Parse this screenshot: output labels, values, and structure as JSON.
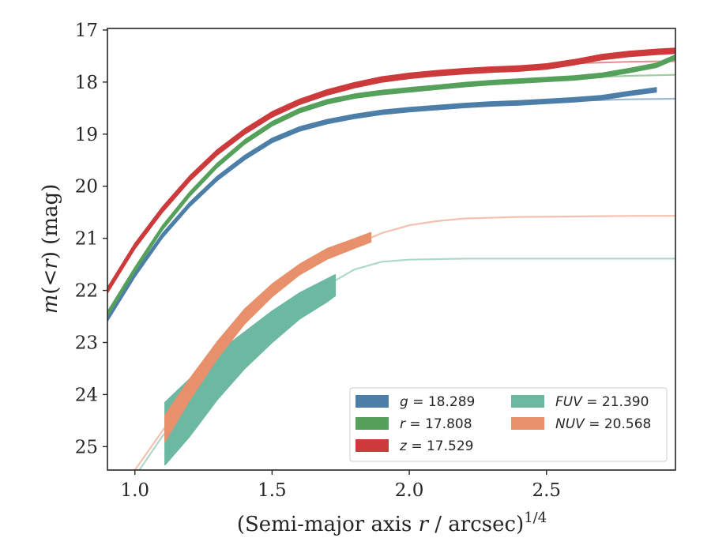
{
  "chart_data": {
    "type": "line",
    "title": "",
    "xlabel": "(Semi-major axis r / arcsec)^1/4",
    "xlabel_parts": {
      "before": "(Semi-major axis ",
      "var": "r",
      "middle": " / arcsec)",
      "sup": "1/4"
    },
    "ylabel": "m(<r) (mag)",
    "ylabel_parts": {
      "var": "m",
      "open": "(",
      "lt": "<",
      "r": "r",
      "close": ")",
      "unit": " (mag)"
    },
    "xlim": [
      0.9,
      2.97
    ],
    "ylim": [
      25.45,
      16.97
    ],
    "y_inverted": true,
    "grid": false,
    "legend_position": "lower-right",
    "xticks": [
      1.0,
      1.5,
      2.0,
      2.5
    ],
    "xtick_labels": [
      "1.0",
      "1.5",
      "2.0",
      "2.5"
    ],
    "yticks": [
      17,
      18,
      19,
      20,
      21,
      22,
      23,
      24,
      25
    ],
    "ytick_labels": [
      "17",
      "18",
      "19",
      "20",
      "21",
      "22",
      "23",
      "24",
      "25"
    ],
    "series": [
      {
        "name": "g = 18.289",
        "legend_var": "g",
        "legend_value": "18.289",
        "color": "#4c7ea8",
        "band_halfwidth": 0.04,
        "x": [
          0.9,
          1.0,
          1.1,
          1.2,
          1.3,
          1.4,
          1.5,
          1.6,
          1.7,
          1.8,
          1.9,
          2.0,
          2.1,
          2.2,
          2.3,
          2.4,
          2.5,
          2.6,
          2.7,
          2.8,
          2.9
        ],
        "y": [
          22.55,
          21.7,
          20.95,
          20.35,
          19.85,
          19.45,
          19.12,
          18.9,
          18.76,
          18.66,
          18.58,
          18.53,
          18.49,
          18.45,
          18.42,
          18.4,
          18.37,
          18.34,
          18.3,
          18.22,
          18.15
        ],
        "fit_x": [
          0.9,
          1.0,
          1.1,
          1.2,
          1.3,
          1.4,
          1.5,
          1.6,
          1.7,
          1.8,
          1.9,
          2.0,
          2.2,
          2.4,
          2.6,
          2.8,
          2.97
        ],
        "fit_y": [
          22.55,
          21.7,
          20.95,
          20.35,
          19.85,
          19.45,
          19.12,
          18.9,
          18.76,
          18.66,
          18.58,
          18.53,
          18.45,
          18.4,
          18.36,
          18.33,
          18.32
        ]
      },
      {
        "name": "r = 17.808",
        "legend_var": "r",
        "legend_value": "17.808",
        "color": "#55a05a",
        "band_halfwidth": 0.04,
        "x": [
          0.9,
          1.0,
          1.1,
          1.2,
          1.3,
          1.4,
          1.5,
          1.6,
          1.7,
          1.8,
          1.9,
          2.0,
          2.1,
          2.2,
          2.3,
          2.4,
          2.5,
          2.6,
          2.7,
          2.8,
          2.9,
          2.97
        ],
        "y": [
          22.45,
          21.6,
          20.8,
          20.15,
          19.6,
          19.15,
          18.8,
          18.55,
          18.38,
          18.27,
          18.2,
          18.15,
          18.1,
          18.05,
          18.01,
          17.98,
          17.95,
          17.92,
          17.87,
          17.78,
          17.68,
          17.52
        ],
        "fit_x": [
          0.9,
          1.0,
          1.1,
          1.2,
          1.3,
          1.4,
          1.5,
          1.6,
          1.7,
          1.8,
          1.9,
          2.0,
          2.2,
          2.4,
          2.6,
          2.8,
          2.97
        ],
        "fit_y": [
          22.45,
          21.6,
          20.8,
          20.15,
          19.6,
          19.15,
          18.8,
          18.55,
          18.38,
          18.27,
          18.2,
          18.13,
          18.04,
          17.97,
          17.92,
          17.88,
          17.86
        ]
      },
      {
        "name": "z = 17.529",
        "legend_var": "z",
        "legend_value": "17.529",
        "color": "#cc3a3c",
        "band_halfwidth": 0.05,
        "x": [
          0.9,
          1.0,
          1.1,
          1.2,
          1.3,
          1.4,
          1.5,
          1.6,
          1.7,
          1.8,
          1.9,
          2.0,
          2.1,
          2.2,
          2.3,
          2.4,
          2.5,
          2.6,
          2.7,
          2.8,
          2.9,
          2.97
        ],
        "y": [
          22.0,
          21.15,
          20.45,
          19.85,
          19.35,
          18.95,
          18.62,
          18.38,
          18.2,
          18.06,
          17.95,
          17.88,
          17.83,
          17.79,
          17.76,
          17.74,
          17.7,
          17.62,
          17.52,
          17.46,
          17.42,
          17.4
        ],
        "fit_x": [
          0.9,
          1.0,
          1.1,
          1.2,
          1.3,
          1.4,
          1.5,
          1.6,
          1.7,
          1.8,
          1.9,
          2.0,
          2.2,
          2.4,
          2.6,
          2.8,
          2.97
        ],
        "fit_y": [
          22.0,
          21.15,
          20.45,
          19.85,
          19.35,
          18.95,
          18.62,
          18.38,
          18.2,
          18.06,
          17.95,
          17.88,
          17.76,
          17.69,
          17.64,
          17.61,
          17.6
        ]
      },
      {
        "name": "FUV = 21.390",
        "legend_var": "FUV",
        "legend_value": "21.390",
        "color": "#6cb8a0",
        "x": [
          1.11,
          1.2,
          1.3,
          1.4,
          1.5,
          1.6,
          1.7,
          1.73
        ],
        "y": [
          24.75,
          24.25,
          23.65,
          23.15,
          22.7,
          22.3,
          22.0,
          21.9
        ],
        "band_halfwidth": [
          0.6,
          0.55,
          0.45,
          0.35,
          0.3,
          0.25,
          0.22,
          0.2
        ],
        "fit_x": [
          1.01,
          1.1,
          1.2,
          1.3,
          1.4,
          1.5,
          1.6,
          1.7,
          1.8,
          1.9,
          2.0,
          2.2,
          2.5,
          2.97
        ],
        "fit_y": [
          25.5,
          24.8,
          24.2,
          23.6,
          23.1,
          22.65,
          22.25,
          21.9,
          21.6,
          21.45,
          21.41,
          21.39,
          21.39,
          21.39
        ]
      },
      {
        "name": "NUV = 20.568",
        "legend_var": "NUV",
        "legend_value": "20.568",
        "color": "#e8906c",
        "x": [
          1.11,
          1.2,
          1.3,
          1.4,
          1.5,
          1.6,
          1.7,
          1.8,
          1.86
        ],
        "y": [
          24.65,
          23.9,
          23.15,
          22.5,
          22.0,
          21.6,
          21.3,
          21.1,
          20.98
        ],
        "band_halfwidth": [
          0.25,
          0.2,
          0.16,
          0.14,
          0.12,
          0.1,
          0.1,
          0.09,
          0.09
        ],
        "fit_x": [
          1.0,
          1.1,
          1.2,
          1.3,
          1.4,
          1.5,
          1.6,
          1.7,
          1.8,
          1.9,
          2.0,
          2.1,
          2.2,
          2.4,
          2.6,
          2.8,
          2.97
        ],
        "fit_y": [
          25.45,
          24.7,
          23.95,
          23.2,
          22.55,
          22.05,
          21.65,
          21.35,
          21.12,
          20.9,
          20.75,
          20.67,
          20.62,
          20.59,
          20.58,
          20.57,
          20.568
        ]
      }
    ]
  }
}
